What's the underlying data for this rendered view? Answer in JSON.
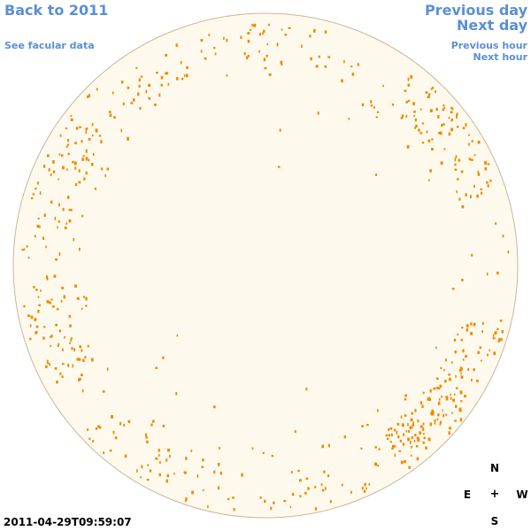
{
  "colors": {
    "link": "#5a8fd6",
    "disk_fill": "#fef9ed",
    "disk_edge": "#c9b79a",
    "facula": "#f08a00"
  },
  "nav": {
    "back_to_year": "Back to 2011",
    "see_facular": "See facular data",
    "previous_day": "Previous day",
    "next_day": "Next day",
    "previous_hour": "Previous hour",
    "next_hour": "Next hour"
  },
  "compass": {
    "north": "N",
    "east": "E",
    "center": "+",
    "west": "W",
    "south": "S"
  },
  "observation": {
    "timestamp": "2011-04-29T09:59:07"
  }
}
